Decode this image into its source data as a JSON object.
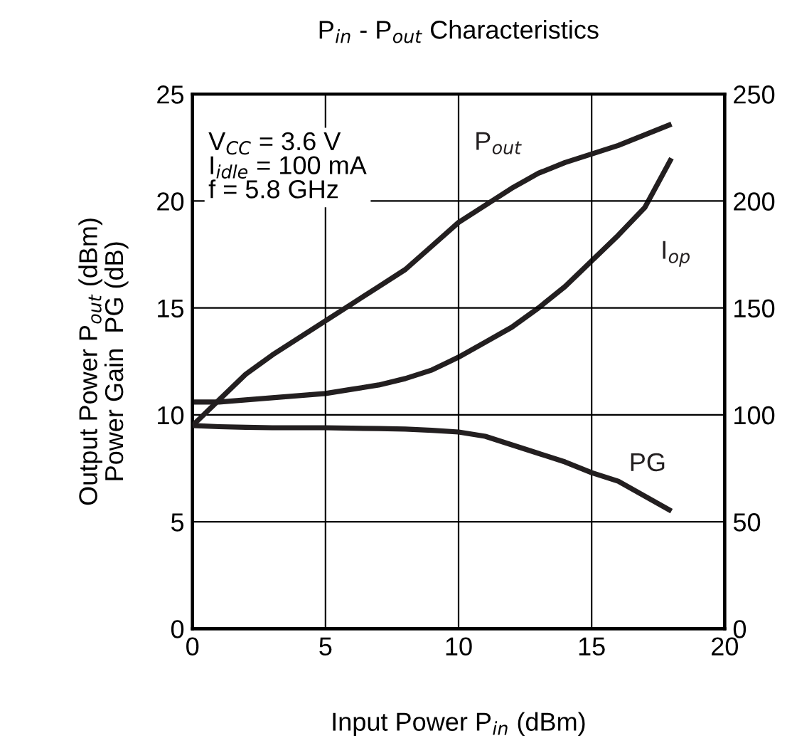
{
  "chart_data": {
    "type": "line",
    "title": "P$_{in}$ - P$_{out}$ Characteristics",
    "xlabel": "Input Power P$_{in}$ (dBm)",
    "ylabel": "Output Power P$_{out}$ (dBm)\nPower Gain  PG (dB)",
    "series": [
      {
        "name": "P$_{out}$",
        "color": "#231f20",
        "x": [
          0,
          1,
          2,
          3,
          4,
          5,
          6,
          7,
          8,
          9,
          10,
          11,
          12,
          13,
          14,
          15,
          16,
          17,
          18
        ],
        "values": [
          9.5,
          10.7,
          11.9,
          12.8,
          13.6,
          14.4,
          15.2,
          16.0,
          16.8,
          17.9,
          19.0,
          19.8,
          20.6,
          21.3,
          21.8,
          22.2,
          22.6,
          23.1,
          23.6
        ]
      },
      {
        "name": "I$_{op}$",
        "color": "#231f20",
        "axis": "y2",
        "x": [
          0,
          1,
          2,
          3,
          4,
          5,
          6,
          7,
          8,
          9,
          10,
          11,
          12,
          13,
          14,
          15,
          16,
          17,
          18
        ],
        "values": [
          106,
          106,
          107,
          108,
          109,
          110,
          112,
          114,
          117,
          121,
          127,
          134,
          141,
          150,
          160,
          172,
          184,
          197,
          220
        ]
      },
      {
        "name": "PG",
        "color": "#231f20",
        "x": [
          0,
          1,
          2,
          3,
          4,
          5,
          6,
          7,
          8,
          9,
          10,
          11,
          12,
          13,
          14,
          15,
          16,
          17,
          18
        ],
        "values": [
          9.5,
          9.45,
          9.42,
          9.4,
          9.4,
          9.4,
          9.38,
          9.36,
          9.34,
          9.28,
          9.2,
          9.0,
          8.6,
          8.2,
          7.8,
          7.3,
          6.9,
          6.2,
          5.5
        ]
      }
    ],
    "xlim": [
      0,
      20
    ],
    "xticks": [
      0,
      5,
      10,
      15,
      20
    ],
    "ylim": [
      0,
      25
    ],
    "yticks": [
      0,
      5,
      10,
      15,
      20,
      25
    ],
    "y2lim": [
      0,
      250
    ],
    "y2ticks": [
      0,
      50,
      100,
      150,
      200,
      250
    ],
    "grid": true,
    "annotations": [
      "V$_{CC}$ = 3.6 V\nI$_{idle}$ = 100 mA\nf = 5.8 GHz"
    ]
  }
}
